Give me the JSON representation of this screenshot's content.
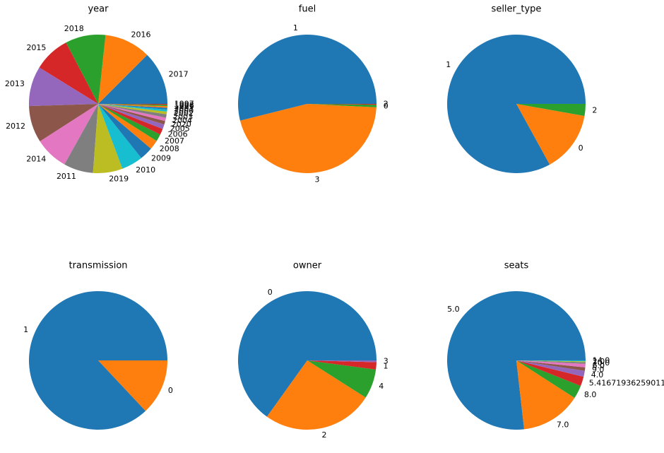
{
  "chart_data": [
    {
      "type": "pie",
      "title": "year",
      "categories": [
        "2017",
        "2016",
        "2018",
        "2015",
        "2013",
        "2012",
        "2014",
        "2011",
        "2019",
        "2010",
        "2009",
        "2008",
        "2007",
        "2006",
        "2005",
        "2020",
        "2004",
        "2003",
        "2002",
        "2000",
        "2001",
        "1999",
        "1998",
        "1997"
      ],
      "values": [
        12.5,
        10.8,
        9.4,
        8.5,
        9.3,
        8.6,
        7.8,
        6.9,
        6.9,
        5.0,
        3.1,
        2.2,
        1.7,
        1.4,
        1.1,
        0.8,
        0.8,
        0.8,
        0.6,
        0.5,
        0.4,
        0.4,
        0.3,
        0.2
      ],
      "colors": [
        "#1f77b4",
        "#ff7f0e",
        "#2ca02c",
        "#d62728",
        "#9467bd",
        "#8c564b",
        "#e377c2",
        "#7f7f7f",
        "#bcbd22",
        "#17becf",
        "#1f77b4",
        "#ff7f0e",
        "#2ca02c",
        "#d62728",
        "#9467bd",
        "#8c564b",
        "#e377c2",
        "#7f7f7f",
        "#bcbd22",
        "#17becf",
        "#1f77b4",
        "#ff7f0e",
        "#2ca02c",
        "#d62728"
      ]
    },
    {
      "type": "pie",
      "title": "fuel",
      "categories": [
        "1",
        "3",
        "0",
        "2"
      ],
      "values": [
        53.9,
        45.3,
        0.6,
        0.2
      ],
      "colors": [
        "#1f77b4",
        "#ff7f0e",
        "#2ca02c",
        "#d62728"
      ]
    },
    {
      "type": "pie",
      "title": "seller_type",
      "categories": [
        "1",
        "0",
        "2"
      ],
      "values": [
        83.0,
        14.2,
        2.8
      ],
      "colors": [
        "#1f77b4",
        "#ff7f0e",
        "#2ca02c"
      ]
    },
    {
      "type": "pie",
      "title": "transmission",
      "categories": [
        "1",
        "0"
      ],
      "values": [
        87.0,
        13.0
      ],
      "colors": [
        "#1f77b4",
        "#ff7f0e"
      ]
    },
    {
      "type": "pie",
      "title": "owner",
      "categories": [
        "0",
        "2",
        "4",
        "1",
        "3"
      ],
      "values": [
        65.1,
        25.9,
        6.9,
        1.7,
        0.4
      ],
      "colors": [
        "#1f77b4",
        "#ff7f0e",
        "#2ca02c",
        "#d62728",
        "#9467bd"
      ]
    },
    {
      "type": "pie",
      "title": "seats",
      "categories": [
        "5.0",
        "7.0",
        "8.0",
        "5.41671936259011",
        "4.0",
        "9.0",
        "6.0",
        "10.0",
        "2.0",
        "14.0"
      ],
      "values": [
        76.8,
        14.1,
        3.1,
        2.2,
        1.4,
        0.8,
        0.8,
        0.4,
        0.2,
        0.2
      ],
      "colors": [
        "#1f77b4",
        "#ff7f0e",
        "#2ca02c",
        "#d62728",
        "#9467bd",
        "#8c564b",
        "#e377c2",
        "#7f7f7f",
        "#bcbd22",
        "#17becf"
      ]
    }
  ]
}
